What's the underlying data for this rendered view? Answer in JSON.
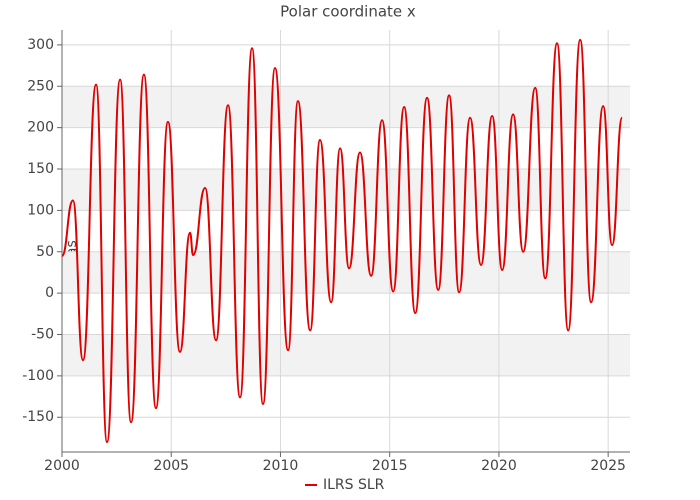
{
  "chart_data": {
    "type": "line",
    "title": "Polar coordinate x",
    "y_label": "mas",
    "x": [
      2000.0,
      2000.5,
      2000.96,
      2001.56,
      2002.06,
      2002.66,
      2003.16,
      2003.75,
      2004.3,
      2004.85,
      2005.4,
      2005.86,
      2006.0,
      2006.55,
      2007.05,
      2007.6,
      2008.15,
      2008.7,
      2009.2,
      2009.75,
      2010.35,
      2010.8,
      2011.36,
      2011.81,
      2012.32,
      2012.73,
      2013.14,
      2013.64,
      2014.15,
      2014.65,
      2015.16,
      2015.66,
      2016.17,
      2016.71,
      2017.22,
      2017.72,
      2018.18,
      2018.68,
      2019.18,
      2019.69,
      2020.15,
      2020.65,
      2021.11,
      2021.66,
      2022.12,
      2022.66,
      2023.17,
      2023.72,
      2024.22,
      2024.77,
      2025.18,
      2025.64
    ],
    "series": [
      {
        "name": "ILRS SLR",
        "color": "#e00000",
        "values": [
          45,
          112,
          -81,
          252,
          -180,
          258,
          -156,
          264,
          -139,
          207,
          -71,
          73,
          46,
          127,
          -57,
          227,
          -126,
          296,
          -134,
          272,
          -69,
          232,
          -45,
          185,
          -11,
          175,
          30,
          170,
          21,
          209,
          2,
          225,
          -24,
          236,
          4,
          239,
          1,
          212,
          34,
          214,
          28,
          216,
          50,
          248,
          18,
          302,
          -45,
          306,
          -11,
          226,
          58,
          212
        ]
      }
    ],
    "xlim": [
      2000,
      2026
    ],
    "xticks": [
      2000,
      2005,
      2010,
      2015,
      2020,
      2025
    ],
    "ylim": [
      -192,
      318
    ],
    "yticks": [
      -150,
      -100,
      -50,
      0,
      50,
      100,
      150,
      200,
      250,
      300
    ],
    "grid": true,
    "banded": true,
    "legend": "bottom"
  }
}
